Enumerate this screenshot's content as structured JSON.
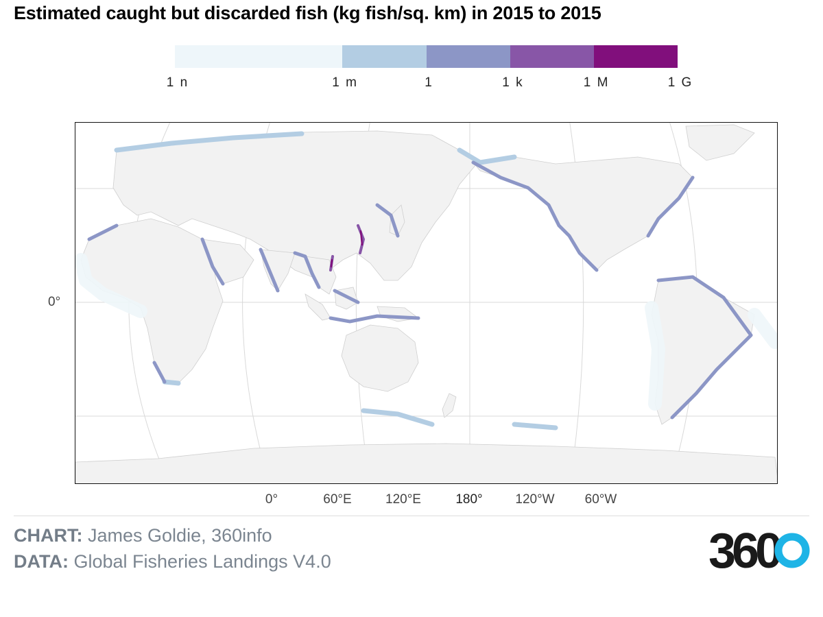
{
  "title": "Estimated caught but discarded fish (kg fish/sq. km) in 2015 to 2015",
  "legend": {
    "segments": [
      {
        "from": 0.0,
        "to": 0.333,
        "color": "#eef6fa"
      },
      {
        "from": 0.333,
        "to": 0.5,
        "color": "#b3cde3"
      },
      {
        "from": 0.5,
        "to": 0.667,
        "color": "#8c96c6"
      },
      {
        "from": 0.667,
        "to": 0.833,
        "color": "#8856a7"
      },
      {
        "from": 0.833,
        "to": 1.0,
        "color": "#810f7c"
      }
    ],
    "labels": [
      {
        "text": "1 n",
        "pos": 0.0
      },
      {
        "text": "1 m",
        "pos": 0.333
      },
      {
        "text": "1",
        "pos": 0.5
      },
      {
        "text": "1 k",
        "pos": 0.667
      },
      {
        "text": "1 M",
        "pos": 0.833
      },
      {
        "text": "1 G",
        "pos": 1.0
      }
    ]
  },
  "map": {
    "land_color": "#f2f2f2",
    "graticule_color": "#d9d9d9",
    "center_longitude": 150,
    "lat_labels": [
      "0°"
    ],
    "lon_labels": [
      {
        "text": "0°",
        "lon": 0
      },
      {
        "text": "60°E",
        "lon": 60
      },
      {
        "text": "120°E",
        "lon": 120
      },
      {
        "text": "180°",
        "lon": 180
      },
      {
        "text": "120°W",
        "lon": 240
      },
      {
        "text": "60°W",
        "lon": 300
      }
    ]
  },
  "credits": {
    "chart_label": "CHART:",
    "chart_value": "James Goldie, 360info",
    "data_label": "DATA:",
    "data_value": "Global Fisheries Landings V4.0"
  },
  "logo": {
    "text": "360",
    "dark_color": "#1a1a1a",
    "accent_color": "#1eb4e6"
  }
}
